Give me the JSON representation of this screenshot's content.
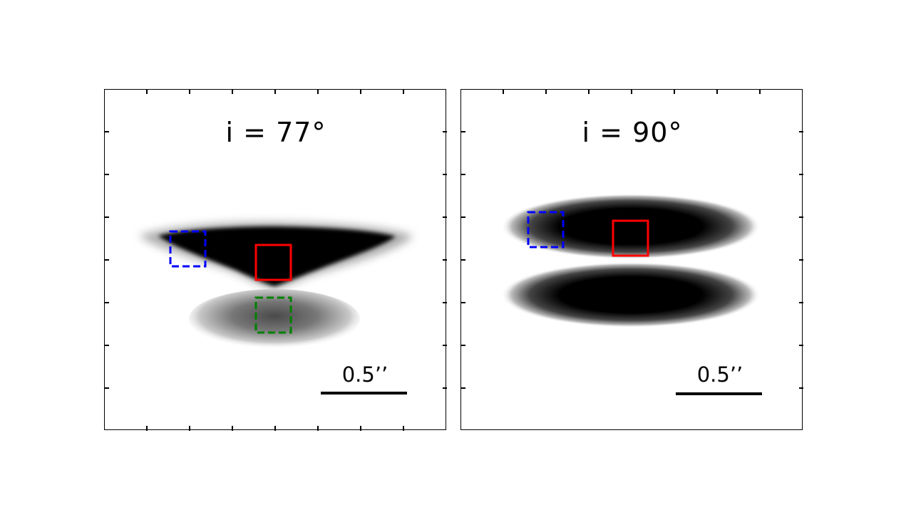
{
  "panels": [
    {
      "id": "left",
      "inclination_label": "i = 77°",
      "scale_bar_label": "0.5’’",
      "boxes": [
        {
          "role": "center",
          "color": "#ff0000",
          "style": "solid"
        },
        {
          "role": "blue-offset",
          "color": "#0000ff",
          "style": "dashed"
        },
        {
          "role": "green-offset",
          "color": "#008000",
          "style": "dashed"
        }
      ]
    },
    {
      "id": "right",
      "inclination_label": "i = 90°",
      "scale_bar_label": "0.5’’",
      "boxes": [
        {
          "role": "center",
          "color": "#ff0000",
          "style": "solid"
        },
        {
          "role": "blue-offset",
          "color": "#0000ff",
          "style": "dashed"
        }
      ]
    }
  ],
  "colors": {
    "frame": "#000000",
    "nebula": "#000000",
    "background": "#ffffff"
  }
}
